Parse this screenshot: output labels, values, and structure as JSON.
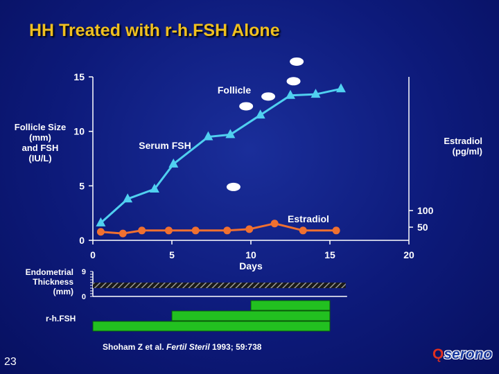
{
  "slide": {
    "title": "HH Treated with r-h.FSH Alone",
    "page_number": "23",
    "citation_prefix": "Shoham Z et al. ",
    "citation_journal": "Fertil Steril",
    "citation_suffix": " 1993; 59:738",
    "logo_text": "serono",
    "logo_mark": "Ǫ"
  },
  "colors": {
    "title": "#f0c020",
    "fsh_line": "#50d0f0",
    "estradiol_line": "#f07030",
    "follicle": "#ffffff",
    "treatment_bar": "#22c020",
    "endometrium": "#9a9a9a"
  },
  "chart_data": {
    "type": "line",
    "xlabel": "Days",
    "xlim": [
      0,
      20
    ],
    "x_ticks": [
      "0",
      "5",
      "10",
      "15",
      "20"
    ],
    "ylabel_left": [
      "Follicle Size",
      "(mm)",
      "and FSH",
      "(IU/L)"
    ],
    "ylim_left": [
      0,
      15
    ],
    "y_ticks_left": [
      "15",
      "10",
      "5",
      "0"
    ],
    "ylabel_right": [
      "Estradiol",
      "(pg/ml)"
    ],
    "y_ticks_right": [
      "100",
      "50"
    ],
    "series": [
      {
        "name": "Serum FSH",
        "marker": "triangle",
        "x": [
          0.5,
          2.2,
          3.9,
          5.1,
          7.3,
          8.7,
          10.6,
          12.5,
          14.1,
          15.7
        ],
        "y": [
          1.6,
          3.8,
          4.7,
          7.0,
          9.5,
          9.7,
          11.5,
          13.3,
          13.4,
          13.9
        ]
      },
      {
        "name": "Estradiol",
        "marker": "circle",
        "x": [
          0.5,
          1.9,
          3.1,
          4.8,
          6.5,
          8.5,
          9.9,
          11.5,
          13.3,
          15.4
        ],
        "y": [
          36,
          31,
          40,
          40,
          40,
          40,
          44,
          61,
          40,
          40
        ]
      },
      {
        "name": "Follicle",
        "marker": "ellipse",
        "x": [
          8.9,
          9.7,
          11.1,
          12.7,
          12.9
        ],
        "y": [
          4.9,
          12.3,
          13.2,
          14.6,
          16.4
        ]
      }
    ],
    "endometrial_thickness": {
      "label": [
        "Endometrial",
        "Thickness",
        "(mm)"
      ],
      "y_ticks": [
        "9",
        "0"
      ],
      "x_range": [
        0,
        16
      ]
    },
    "r_hFSH_label": "r-h.FSH",
    "r_hFSH_bars": [
      {
        "start": 10,
        "end": 15
      },
      {
        "start": 5,
        "end": 15
      },
      {
        "start": 0,
        "end": 15
      }
    ]
  }
}
